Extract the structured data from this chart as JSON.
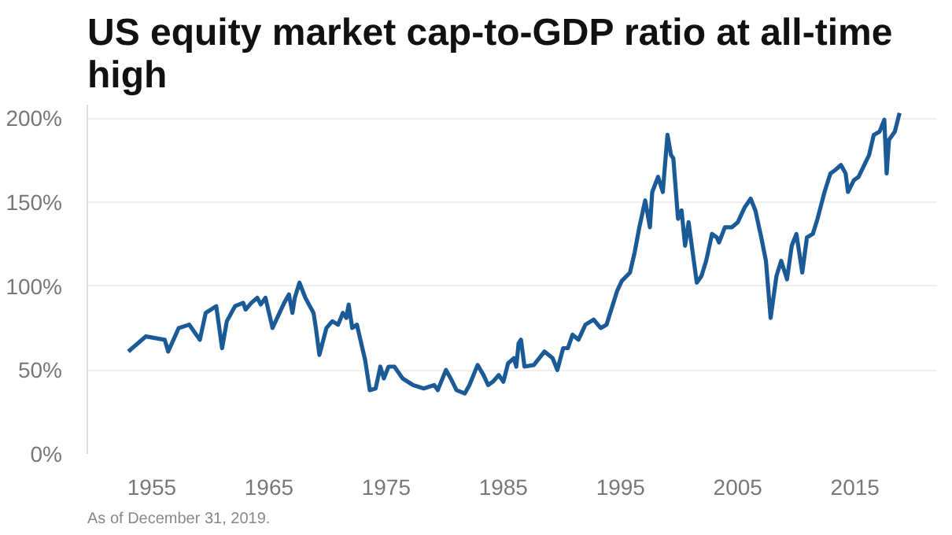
{
  "chart_data": {
    "type": "line",
    "title": "US equity market cap-to-GDP ratio at all-time high",
    "annotations": [
      "As of December 31, 2019."
    ],
    "x": [
      1953.0,
      1954.5,
      1956.1,
      1956.4,
      1957.3,
      1958.2,
      1958.4,
      1959.1,
      1959.6,
      1960.5,
      1961.0,
      1961.4,
      1962.1,
      1962.8,
      1963.0,
      1963.5,
      1964.0,
      1964.3,
      1964.7,
      1965.3,
      1966.3,
      1966.7,
      1967.0,
      1967.2,
      1967.6,
      1968.1,
      1968.8,
      1969.0,
      1969.3,
      1969.9,
      1970.4,
      1970.9,
      1971.3,
      1971.6,
      1971.8,
      1972.1,
      1972.5,
      1972.8,
      1973.2,
      1973.6,
      1974.1,
      1974.5,
      1974.8,
      1975.2,
      1975.7,
      1976.4,
      1977.3,
      1978.2,
      1979.1,
      1979.4,
      1980.1,
      1980.5,
      1981.0,
      1981.7,
      1982.1,
      1982.8,
      1983.3,
      1983.7,
      1984.1,
      1984.6,
      1985.0,
      1985.4,
      1985.9,
      1986.1,
      1986.3,
      1986.5,
      1986.8,
      1987.6,
      1988.5,
      1989.2,
      1989.6,
      1990.1,
      1990.5,
      1990.9,
      1991.4,
      1992.0,
      1992.7,
      1993.3,
      1993.8,
      1994.7,
      1995.1,
      1995.8,
      1996.2,
      1996.6,
      1997.1,
      1997.5,
      1997.7,
      1998.2,
      1998.6,
      1999.0,
      1999.3,
      1999.5,
      1999.9,
      2000.2,
      2000.5,
      2000.8,
      2001.5,
      2001.9,
      2002.3,
      2002.8,
      2003.2,
      2003.4,
      2003.9,
      2004.5,
      2005.0,
      2005.6,
      2006.1,
      2006.5,
      2007.0,
      2007.4,
      2007.8,
      2008.3,
      2008.7,
      2009.2,
      2009.6,
      2010.0,
      2010.5,
      2010.9,
      2011.4,
      2011.8,
      2012.4,
      2012.9,
      2013.3,
      2013.8,
      2014.2,
      2014.4,
      2014.9,
      2015.3,
      2016.2,
      2016.6,
      2017.1,
      2017.5,
      2017.7,
      2017.9,
      2018.4,
      2018.8
    ],
    "series": [
      {
        "color": "#1a5a96",
        "values": [
          61,
          70,
          68,
          61,
          75,
          77,
          75,
          68,
          84,
          88,
          63,
          79,
          88,
          90,
          86,
          90,
          93,
          89,
          93,
          75,
          90,
          95,
          84,
          93,
          102,
          93,
          84,
          75,
          59,
          75,
          79,
          77,
          84,
          81,
          89,
          75,
          77,
          68,
          56,
          38,
          39,
          52,
          45,
          52,
          52,
          45,
          41,
          39,
          41,
          38,
          50,
          45,
          38,
          36,
          41,
          53,
          47,
          41,
          43,
          47,
          43,
          54,
          57,
          52,
          66,
          68,
          52,
          53,
          61,
          57,
          50,
          63,
          63,
          71,
          68,
          77,
          80,
          75,
          77,
          97,
          103,
          108,
          120,
          135,
          151,
          135,
          156,
          165,
          156,
          190,
          178,
          176,
          140,
          145,
          124,
          138,
          102,
          106,
          115,
          131,
          129,
          126,
          135,
          135,
          138,
          147,
          152,
          145,
          129,
          115,
          81,
          106,
          115,
          104,
          124,
          131,
          108,
          129,
          131,
          140,
          156,
          167,
          169,
          172,
          167,
          156,
          163,
          165,
          178,
          190,
          192,
          199,
          167,
          187,
          192,
          203
        ]
      }
    ],
    "xlim": [
      1949.5,
      2022
    ],
    "ylim": [
      0,
      208
    ],
    "xticks": [
      1955,
      1965,
      1975,
      1985,
      1995,
      2005,
      2015
    ],
    "yticks": [
      {
        "value": 0,
        "label": "0%"
      },
      {
        "value": 50,
        "label": "50%"
      },
      {
        "value": 100,
        "label": "100%"
      },
      {
        "value": 150,
        "label": "150%"
      },
      {
        "value": 200,
        "label": "200%"
      }
    ],
    "grid": "y",
    "line_style": "solid"
  }
}
